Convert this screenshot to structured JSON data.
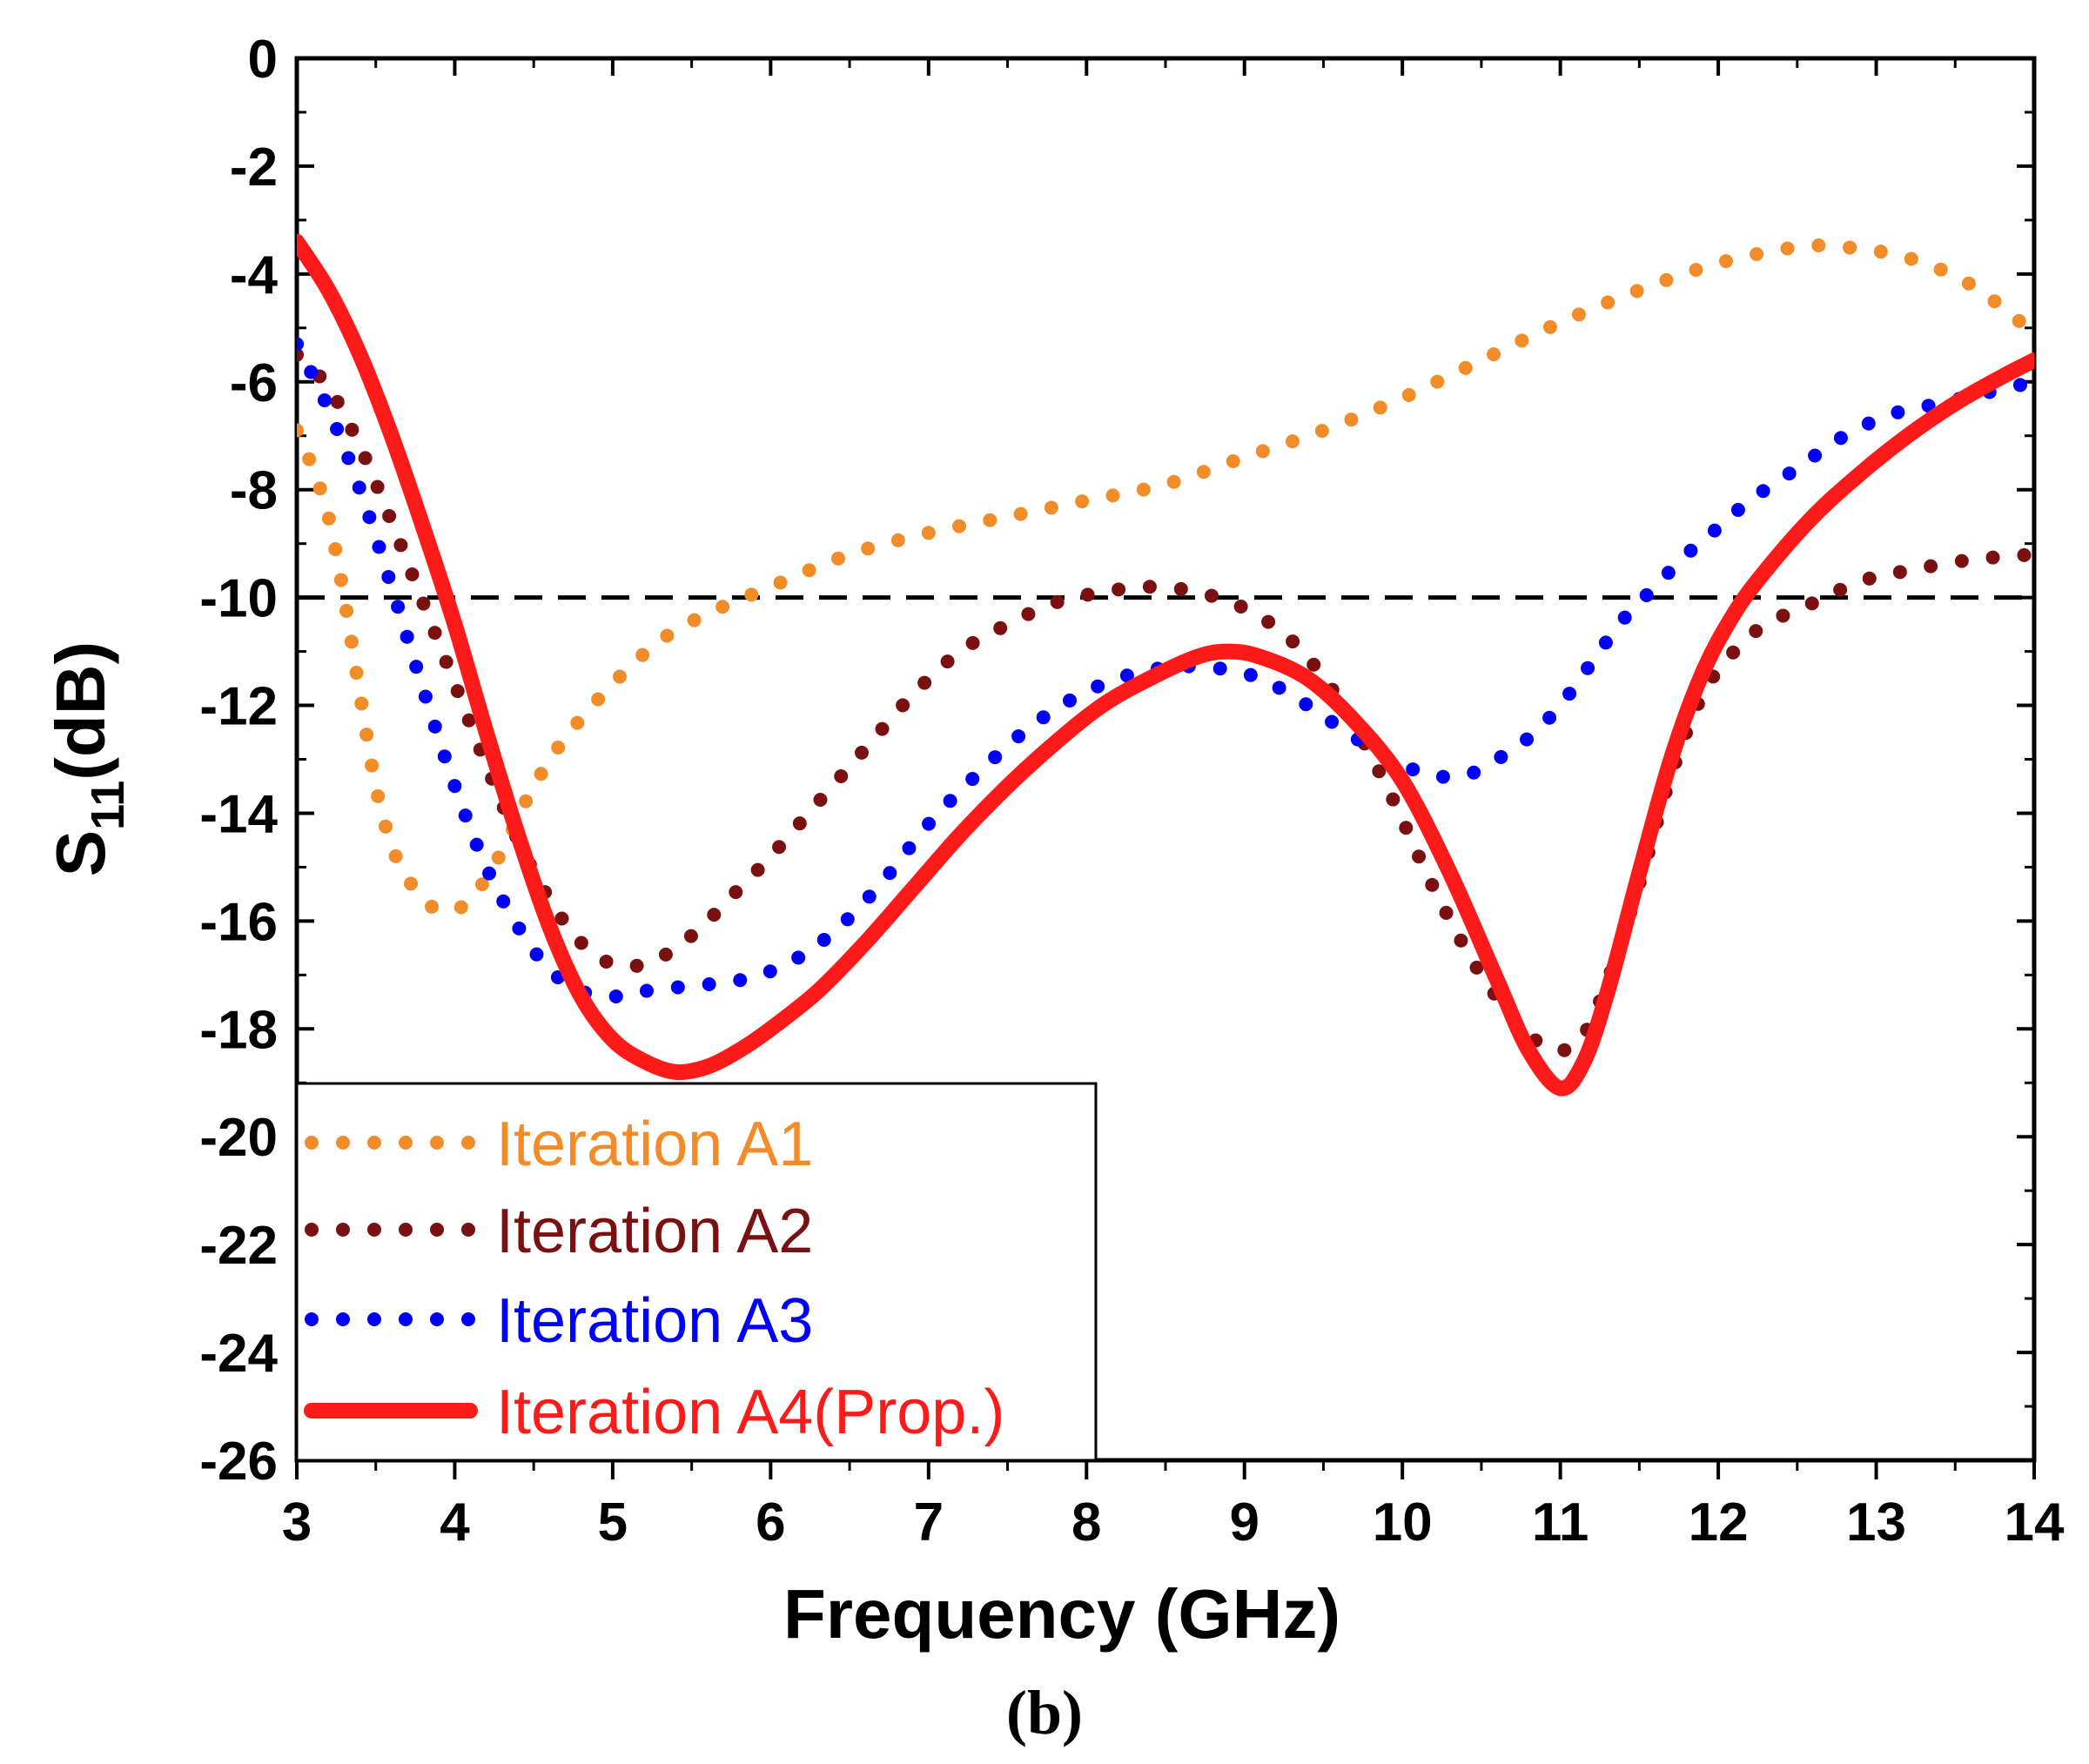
{
  "chart_data": {
    "type": "line",
    "title": "",
    "xlabel": "Frequency (GHz)",
    "ylabel_main": "S",
    "ylabel_sub": "11",
    "ylabel_unit": "(dB)",
    "xlim": [
      3,
      14
    ],
    "ylim": [
      -26,
      0
    ],
    "xticks": [
      3,
      4,
      5,
      6,
      7,
      8,
      9,
      10,
      11,
      12,
      13,
      14
    ],
    "yticks": [
      0,
      -2,
      -4,
      -6,
      -8,
      -10,
      -12,
      -14,
      -16,
      -18,
      -20,
      -22,
      -24,
      -26
    ],
    "reference_line": {
      "y": -10,
      "style": "dashed",
      "color": "#000000"
    },
    "legend_position": "bottom-left",
    "series": [
      {
        "name": "Iteration A1",
        "color": "#f28c28",
        "style": "dotted",
        "points": [
          [
            3.0,
            -6.9
          ],
          [
            3.1,
            -7.6
          ],
          [
            3.2,
            -8.5
          ],
          [
            3.3,
            -10.0
          ],
          [
            3.4,
            -11.8
          ],
          [
            3.5,
            -13.5
          ],
          [
            3.6,
            -14.6
          ],
          [
            3.7,
            -15.2
          ],
          [
            3.8,
            -15.6
          ],
          [
            3.9,
            -15.8
          ],
          [
            4.0,
            -15.8
          ],
          [
            4.1,
            -15.6
          ],
          [
            4.2,
            -15.2
          ],
          [
            4.3,
            -14.7
          ],
          [
            4.4,
            -14.1
          ],
          [
            4.5,
            -13.5
          ],
          [
            4.7,
            -12.6
          ],
          [
            5.0,
            -11.6
          ],
          [
            5.3,
            -10.8
          ],
          [
            5.6,
            -10.3
          ],
          [
            6.0,
            -9.8
          ],
          [
            6.5,
            -9.2
          ],
          [
            7.0,
            -8.8
          ],
          [
            7.5,
            -8.5
          ],
          [
            8.0,
            -8.2
          ],
          [
            8.5,
            -7.9
          ],
          [
            9.0,
            -7.4
          ],
          [
            9.5,
            -6.9
          ],
          [
            10.0,
            -6.3
          ],
          [
            10.5,
            -5.6
          ],
          [
            11.0,
            -4.9
          ],
          [
            11.5,
            -4.3
          ],
          [
            12.0,
            -3.8
          ],
          [
            12.5,
            -3.5
          ],
          [
            12.8,
            -3.5
          ],
          [
            13.2,
            -3.7
          ],
          [
            13.6,
            -4.2
          ],
          [
            14.0,
            -5.1
          ]
        ]
      },
      {
        "name": "Iteration A2",
        "color": "#7b1010",
        "style": "dotted",
        "points": [
          [
            3.0,
            -5.5
          ],
          [
            3.2,
            -6.1
          ],
          [
            3.4,
            -7.2
          ],
          [
            3.6,
            -8.6
          ],
          [
            3.8,
            -10.1
          ],
          [
            4.0,
            -11.6
          ],
          [
            4.2,
            -13.1
          ],
          [
            4.4,
            -14.5
          ],
          [
            4.6,
            -15.6
          ],
          [
            4.8,
            -16.4
          ],
          [
            5.0,
            -16.8
          ],
          [
            5.2,
            -16.8
          ],
          [
            5.4,
            -16.5
          ],
          [
            5.6,
            -16.0
          ],
          [
            5.8,
            -15.4
          ],
          [
            6.0,
            -14.8
          ],
          [
            6.3,
            -13.8
          ],
          [
            6.6,
            -12.8
          ],
          [
            6.9,
            -11.8
          ],
          [
            7.2,
            -11.0
          ],
          [
            7.5,
            -10.5
          ],
          [
            7.8,
            -10.1
          ],
          [
            8.1,
            -9.9
          ],
          [
            8.4,
            -9.8
          ],
          [
            8.7,
            -9.9
          ],
          [
            9.0,
            -10.2
          ],
          [
            9.3,
            -10.8
          ],
          [
            9.6,
            -11.9
          ],
          [
            9.9,
            -13.5
          ],
          [
            10.2,
            -15.4
          ],
          [
            10.5,
            -17.0
          ],
          [
            10.8,
            -18.1
          ],
          [
            11.0,
            -18.4
          ],
          [
            11.15,
            -18.1
          ],
          [
            11.3,
            -17.1
          ],
          [
            11.5,
            -15.3
          ],
          [
            11.7,
            -13.3
          ],
          [
            11.9,
            -11.8
          ],
          [
            12.1,
            -11.0
          ],
          [
            12.3,
            -10.5
          ],
          [
            12.6,
            -10.1
          ],
          [
            12.9,
            -9.7
          ],
          [
            13.2,
            -9.5
          ],
          [
            13.6,
            -9.3
          ],
          [
            14.0,
            -9.2
          ]
        ]
      },
      {
        "name": "Iteration A3",
        "color": "#0000ff",
        "style": "dotted",
        "points": [
          [
            3.0,
            -5.3
          ],
          [
            3.2,
            -6.5
          ],
          [
            3.4,
            -8.0
          ],
          [
            3.6,
            -9.8
          ],
          [
            3.8,
            -11.7
          ],
          [
            4.0,
            -13.5
          ],
          [
            4.2,
            -15.0
          ],
          [
            4.4,
            -16.1
          ],
          [
            4.6,
            -16.9
          ],
          [
            4.8,
            -17.3
          ],
          [
            5.0,
            -17.4
          ],
          [
            5.2,
            -17.3
          ],
          [
            5.5,
            -17.2
          ],
          [
            5.8,
            -17.1
          ],
          [
            6.1,
            -16.8
          ],
          [
            6.4,
            -16.2
          ],
          [
            6.7,
            -15.3
          ],
          [
            7.0,
            -14.2
          ],
          [
            7.3,
            -13.3
          ],
          [
            7.6,
            -12.5
          ],
          [
            7.9,
            -11.9
          ],
          [
            8.2,
            -11.5
          ],
          [
            8.5,
            -11.3
          ],
          [
            8.8,
            -11.3
          ],
          [
            9.1,
            -11.5
          ],
          [
            9.4,
            -12.0
          ],
          [
            9.7,
            -12.6
          ],
          [
            10.0,
            -13.1
          ],
          [
            10.2,
            -13.3
          ],
          [
            10.4,
            -13.3
          ],
          [
            10.6,
            -13.0
          ],
          [
            10.8,
            -12.6
          ],
          [
            11.0,
            -12.0
          ],
          [
            11.2,
            -11.2
          ],
          [
            11.4,
            -10.4
          ],
          [
            11.6,
            -9.8
          ],
          [
            11.8,
            -9.2
          ],
          [
            12.0,
            -8.7
          ],
          [
            12.2,
            -8.2
          ],
          [
            12.5,
            -7.6
          ],
          [
            12.8,
            -7.0
          ],
          [
            13.1,
            -6.6
          ],
          [
            13.4,
            -6.4
          ],
          [
            13.7,
            -6.2
          ],
          [
            14.0,
            -6.0
          ]
        ]
      },
      {
        "name": "Iteration A4(Prop.)",
        "color": "#ff1a1a",
        "style": "solid",
        "points": [
          [
            3.0,
            -3.4
          ],
          [
            3.2,
            -4.3
          ],
          [
            3.4,
            -5.5
          ],
          [
            3.6,
            -7.0
          ],
          [
            3.8,
            -8.7
          ],
          [
            4.0,
            -10.5
          ],
          [
            4.2,
            -12.5
          ],
          [
            4.4,
            -14.4
          ],
          [
            4.6,
            -16.1
          ],
          [
            4.8,
            -17.4
          ],
          [
            5.0,
            -18.2
          ],
          [
            5.2,
            -18.6
          ],
          [
            5.4,
            -18.8
          ],
          [
            5.6,
            -18.7
          ],
          [
            5.8,
            -18.4
          ],
          [
            6.0,
            -18.0
          ],
          [
            6.3,
            -17.3
          ],
          [
            6.6,
            -16.4
          ],
          [
            6.9,
            -15.4
          ],
          [
            7.2,
            -14.4
          ],
          [
            7.5,
            -13.5
          ],
          [
            7.8,
            -12.7
          ],
          [
            8.1,
            -12.0
          ],
          [
            8.4,
            -11.5
          ],
          [
            8.7,
            -11.1
          ],
          [
            8.9,
            -11.0
          ],
          [
            9.1,
            -11.1
          ],
          [
            9.4,
            -11.5
          ],
          [
            9.7,
            -12.3
          ],
          [
            10.0,
            -13.4
          ],
          [
            10.3,
            -15.1
          ],
          [
            10.6,
            -17.1
          ],
          [
            10.8,
            -18.4
          ],
          [
            11.0,
            -19.1
          ],
          [
            11.15,
            -18.6
          ],
          [
            11.3,
            -17.3
          ],
          [
            11.5,
            -15.1
          ],
          [
            11.7,
            -13.0
          ],
          [
            11.9,
            -11.4
          ],
          [
            12.1,
            -10.3
          ],
          [
            12.3,
            -9.5
          ],
          [
            12.6,
            -8.5
          ],
          [
            12.9,
            -7.7
          ],
          [
            13.2,
            -7.0
          ],
          [
            13.5,
            -6.4
          ],
          [
            13.8,
            -5.9
          ],
          [
            14.0,
            -5.6
          ]
        ]
      }
    ]
  },
  "caption": "(b)"
}
